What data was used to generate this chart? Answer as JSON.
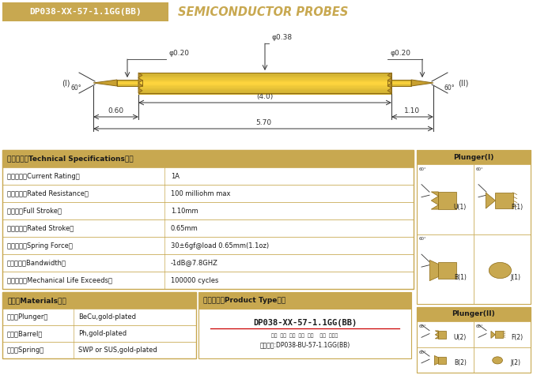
{
  "title_box_text": "DP038-XX-57-1.1GG(BB)",
  "title_text": "SEMICONDUCTOR PROBES",
  "title_box_color": "#C8A850",
  "bg_color": "#FFFFFF",
  "gold_color": "#C8A850",
  "gold_dark": "#8B6914",
  "table_header_bg": "#C8A850",
  "table_border": "#C8A850",
  "specs": [
    [
      "技术要求（Technical Specifications）：",
      ""
    ],
    [
      "额定电流（Current Rating）",
      "1A"
    ],
    [
      "额定电阻（Rated Resistance）",
      "100 milliohm max"
    ],
    [
      "满行程（Full Stroke）",
      "1.10mm"
    ],
    [
      "额定行程（Rated Stroke）",
      "0.65mm"
    ],
    [
      "额定弹力（Spring Force）",
      "30±6gf@load 0.65mm(1.1oz)"
    ],
    [
      "频率带宽（Bandwidth）",
      "-1dB@7.8GHZ"
    ],
    [
      "测试寿命（Mechanical Life Exceeds）",
      "100000 cycles"
    ]
  ],
  "materials": [
    [
      "材质（Materials）：",
      ""
    ],
    [
      "针头（Plunger）",
      "BeCu,gold-plated"
    ],
    [
      "针管（Barrel）",
      "Ph,gold-plated"
    ],
    [
      "弹簧（Spring）",
      "SWP or SUS,gold-plated"
    ]
  ],
  "product_type_header": "成品型号（Product Type）：",
  "product_type_model": "DP038-XX-57-1.1GG(BB)",
  "product_type_sub": "系列  规格  头型  总长  弹力    镀金  针头数",
  "product_type_order": "订购单例:DP038-BU-57-1.1GG(BB)",
  "plunger1_label": "Plunger(I)",
  "plunger2_label": "Plunger(II)",
  "dim_d1": "φ0.20",
  "dim_d2": "φ0.38",
  "dim_d3": "φ0.20",
  "dim_4": "(4.0)",
  "dim_060": "0.60",
  "dim_110": "1.10",
  "dim_570": "5.70",
  "angle_label": "60°",
  "label_I": "(I)",
  "label_II": "(II)"
}
